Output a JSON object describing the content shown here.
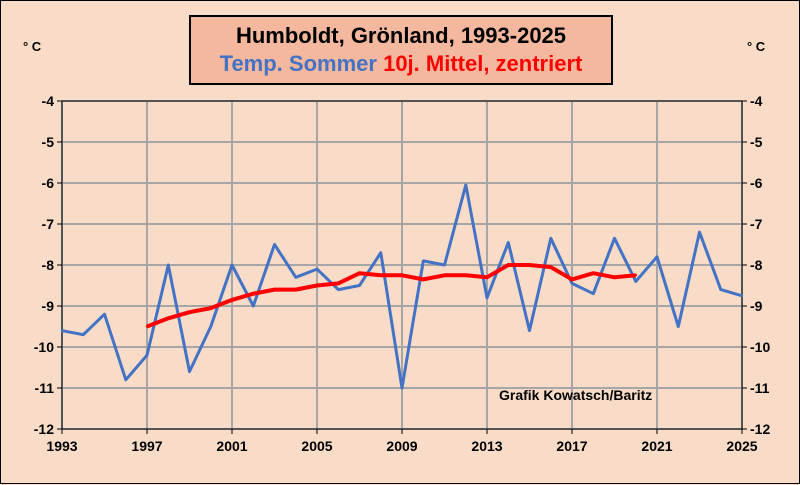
{
  "title": {
    "line1": "Humboldt, Grönland, 1993-2025",
    "line2_series1": "Temp. Sommer",
    "line2_series2": "10j. Mittel, zentriert"
  },
  "unit_left": "° C",
  "unit_right": "° C",
  "credit": "Grafik Kowatsch/Baritz",
  "colors": {
    "temp": "#4472c4",
    "mean": "#ff0000",
    "background": "#f8dcc8",
    "title_box": "#f4b89e",
    "grid": "#a6a6a6"
  },
  "chart_data": {
    "type": "line",
    "title": "Humboldt, Grönland, 1993-2025",
    "xlabel": "",
    "ylabel": "° C",
    "xlim": [
      1993,
      2025
    ],
    "ylim": [
      -12,
      -4
    ],
    "x_ticks": [
      "1993",
      "1997",
      "2001",
      "2005",
      "2009",
      "2013",
      "2017",
      "2021",
      "2025"
    ],
    "y_ticks": [
      "-4",
      "-5",
      "-6",
      "-7",
      "-8",
      "-9",
      "-10",
      "-11",
      "-12"
    ],
    "grid": true,
    "series": [
      {
        "name": "Temp. Sommer",
        "color": "#4472c4",
        "x": [
          1993,
          1994,
          1995,
          1996,
          1997,
          1998,
          1999,
          2000,
          2001,
          2002,
          2003,
          2004,
          2005,
          2006,
          2007,
          2008,
          2009,
          2010,
          2011,
          2012,
          2013,
          2014,
          2015,
          2016,
          2017,
          2018,
          2019,
          2020,
          2021,
          2022,
          2023,
          2024,
          2025
        ],
        "values": [
          -9.6,
          -9.7,
          -9.2,
          -10.8,
          -10.2,
          -8.0,
          -10.6,
          -9.5,
          -8.0,
          -9.0,
          -7.5,
          -8.3,
          -8.1,
          -8.6,
          -8.5,
          -7.7,
          -11.0,
          -7.9,
          -8.0,
          -6.05,
          -8.8,
          -7.45,
          -9.6,
          -7.35,
          -8.45,
          -8.7,
          -7.35,
          -8.4,
          -7.8,
          -9.5,
          -7.2,
          -8.6,
          -8.75
        ]
      },
      {
        "name": "10j. Mittel, zentriert",
        "color": "#ff0000",
        "x": [
          1997,
          1998,
          1999,
          2000,
          2001,
          2002,
          2003,
          2004,
          2005,
          2006,
          2007,
          2008,
          2009,
          2010,
          2011,
          2012,
          2013,
          2014,
          2015,
          2016,
          2017,
          2018,
          2019,
          2020
        ],
        "values": [
          -9.5,
          -9.3,
          -9.15,
          -9.05,
          -8.85,
          -8.7,
          -8.6,
          -8.6,
          -8.5,
          -8.45,
          -8.2,
          -8.25,
          -8.25,
          -8.35,
          -8.25,
          -8.25,
          -8.3,
          -8.0,
          -8.0,
          -8.05,
          -8.35,
          -8.2,
          -8.3,
          -8.25
        ]
      }
    ]
  }
}
